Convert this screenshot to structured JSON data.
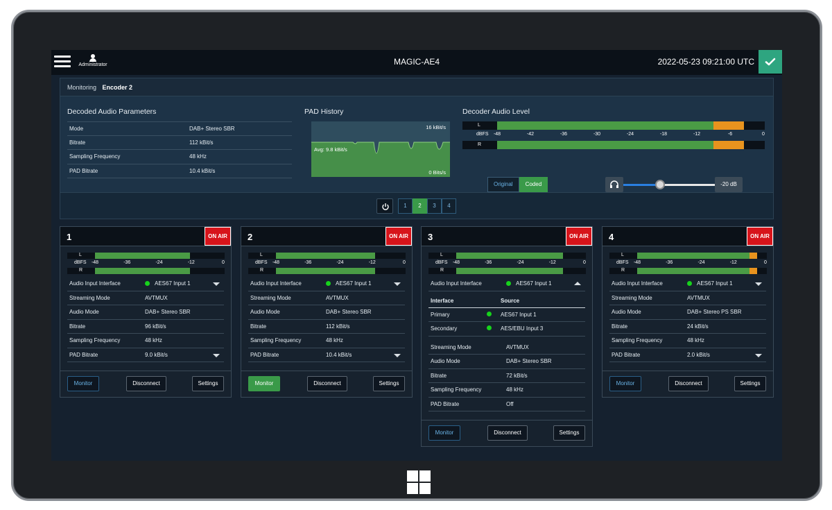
{
  "app": {
    "user_label": "Administrator",
    "title": "MAGIC-AE4",
    "datetime": "2022-05-23 09:21:00 UTC",
    "status_icon": "check-icon",
    "accent": "#2ea580"
  },
  "monitoring": {
    "label": "Monitoring",
    "encoder": "Encoder 2",
    "decoded_params": {
      "title": "Decoded Audio Parameters",
      "rows": [
        {
          "label": "Mode",
          "value": "DAB+ Stereo SBR"
        },
        {
          "label": "Bitrate",
          "value": "112 kBit/s"
        },
        {
          "label": "Sampling Frequency",
          "value": "48 kHz"
        },
        {
          "label": "PAD Bitrate",
          "value": "10.4 kBit/s"
        }
      ]
    },
    "pad_history": {
      "title": "PAD History",
      "max_label": "16 kBit/s",
      "avg_label": "Avg: 9.8 kBit/s",
      "min_label": "0 Bits/s"
    },
    "decoder_level": {
      "title": "Decoder Audio Level",
      "left_label": "L",
      "right_label": "R",
      "unit": "dBFS",
      "scale": [
        "-48",
        "-42",
        "-36",
        "-30",
        "-24",
        "-18",
        "-12",
        "-6",
        "0"
      ],
      "left_level_db": -3.5,
      "right_level_db": -3.5,
      "toggle": {
        "original": "Original",
        "coded": "Coded",
        "selected": "Coded"
      },
      "volume": {
        "value": "-20 dB",
        "position": 0.4,
        "icon": "headphones-icon"
      }
    },
    "pager": {
      "pages": [
        "1",
        "2",
        "3",
        "4"
      ],
      "active": "2",
      "power_icon": "power-icon"
    }
  },
  "encoders": [
    {
      "number": "1",
      "status": "ON AIR",
      "meter": {
        "left_db": -12.5,
        "right_db": -12.5,
        "scale": [
          "-48",
          "-36",
          "-24",
          "-12",
          "0"
        ],
        "unit": "dBFS",
        "left_label": "L",
        "right_label": "R"
      },
      "rows": [
        {
          "label": "Audio Input Interface",
          "value": "AES67 Input 1",
          "dot": true,
          "caret": "down"
        },
        {
          "label": "Streaming Mode",
          "value": "AVTMUX"
        },
        {
          "label": "Audio Mode",
          "value": "DAB+ Stereo SBR"
        },
        {
          "label": "Bitrate",
          "value": "96 kBit/s"
        },
        {
          "label": "Sampling Frequency",
          "value": "48 kHz"
        },
        {
          "label": "PAD Bitrate",
          "value": "9.0 kBit/s",
          "caret": "down"
        }
      ],
      "actions": {
        "monitor": "Monitor",
        "disconnect": "Disconnect",
        "settings": "Settings",
        "monitor_active": false
      }
    },
    {
      "number": "2",
      "status": "ON AIR",
      "meter": {
        "left_db": -11,
        "right_db": -11,
        "scale": [
          "-48",
          "-36",
          "-24",
          "-12",
          "0"
        ],
        "unit": "dBFS",
        "left_label": "L",
        "right_label": "R"
      },
      "rows": [
        {
          "label": "Audio Input Interface",
          "value": "AES67 Input 1",
          "dot": true,
          "caret": "down"
        },
        {
          "label": "Streaming Mode",
          "value": "AVTMUX"
        },
        {
          "label": "Audio Mode",
          "value": "DAB+ Stereo SBR"
        },
        {
          "label": "Bitrate",
          "value": "112 kBit/s"
        },
        {
          "label": "Sampling Frequency",
          "value": "48 kHz"
        },
        {
          "label": "PAD Bitrate",
          "value": "10.4 kBit/s",
          "caret": "down"
        }
      ],
      "actions": {
        "monitor": "Monitor",
        "disconnect": "Disconnect",
        "settings": "Settings",
        "monitor_active": true
      }
    },
    {
      "number": "3",
      "status": "ON AIR",
      "meter": {
        "left_db": -8,
        "right_db": -8,
        "scale": [
          "-48",
          "-36",
          "-24",
          "-12",
          "0"
        ],
        "unit": "dBFS",
        "left_label": "L",
        "right_label": "R"
      },
      "rows": [
        {
          "label": "Audio Input Interface",
          "value": "AES67 Input 1",
          "dot": true,
          "caret": "up"
        }
      ],
      "interfaces": {
        "headers": {
          "interface": "Interface",
          "source": "Source"
        },
        "rows": [
          {
            "label": "Primary",
            "source": "AES67 Input 1"
          },
          {
            "label": "Secondary",
            "source": "AES/EBU Input 3"
          }
        ]
      },
      "rows_after": [
        {
          "label": "Streaming Mode",
          "value": "AVTMUX"
        },
        {
          "label": "Audio Mode",
          "value": "DAB+ Stereo SBR"
        },
        {
          "label": "Bitrate",
          "value": "72 kBit/s"
        },
        {
          "label": "Sampling Frequency",
          "value": "48 kHz"
        },
        {
          "label": "PAD Bitrate",
          "value": "Off"
        }
      ],
      "actions": {
        "monitor": "Monitor",
        "disconnect": "Disconnect",
        "settings": "Settings",
        "monitor_active": false
      }
    },
    {
      "number": "4",
      "status": "ON AIR",
      "meter": {
        "left_db": -3,
        "right_db": -3,
        "scale": [
          "-48",
          "-36",
          "-24",
          "-12",
          "0"
        ],
        "unit": "dBFS",
        "left_label": "L",
        "right_label": "R"
      },
      "rows": [
        {
          "label": "Audio Input Interface",
          "value": "AES67 Input 1",
          "dot": true,
          "caret": "down"
        },
        {
          "label": "Streaming Mode",
          "value": "AVTMUX"
        },
        {
          "label": "Audio Mode",
          "value": "DAB+ Stereo PS SBR"
        },
        {
          "label": "Bitrate",
          "value": "24 kBit/s"
        },
        {
          "label": "Sampling Frequency",
          "value": "48 kHz"
        },
        {
          "label": "PAD Bitrate",
          "value": "2.0 kBit/s",
          "caret": "down"
        }
      ],
      "actions": {
        "monitor": "Monitor",
        "disconnect": "Disconnect",
        "settings": "Settings",
        "monitor_active": false
      }
    }
  ]
}
